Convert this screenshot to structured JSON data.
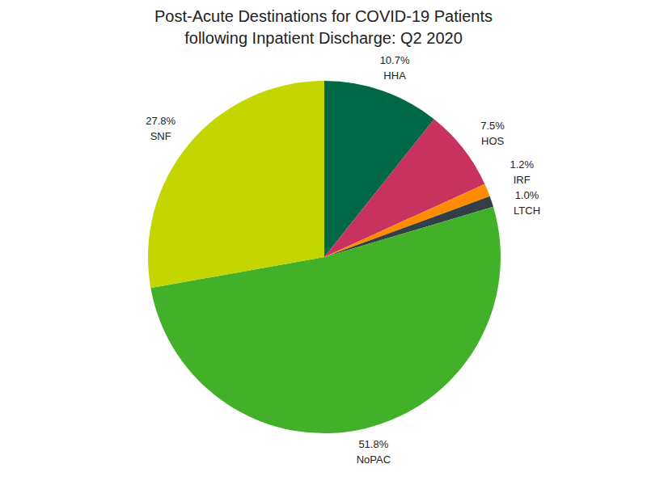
{
  "chart_data": {
    "type": "pie",
    "title": "Post-Acute Destinations for COVID-19 Patients\nfollowing Inpatient Discharge: Q2 2020",
    "categories": [
      "HHA",
      "HOS",
      "IRF",
      "LTCH",
      "NoPAC",
      "SNF"
    ],
    "values": [
      10.7,
      7.5,
      1.2,
      1.0,
      51.8,
      27.8
    ],
    "value_labels": [
      "10.7%",
      "7.5%",
      "1.2%",
      "1.0%",
      "51.8%",
      "27.8%"
    ],
    "colors": [
      "#006747",
      "#c8325e",
      "#ff8c00",
      "#333f48",
      "#43b02a",
      "#c4d600"
    ],
    "data_labels": true
  }
}
